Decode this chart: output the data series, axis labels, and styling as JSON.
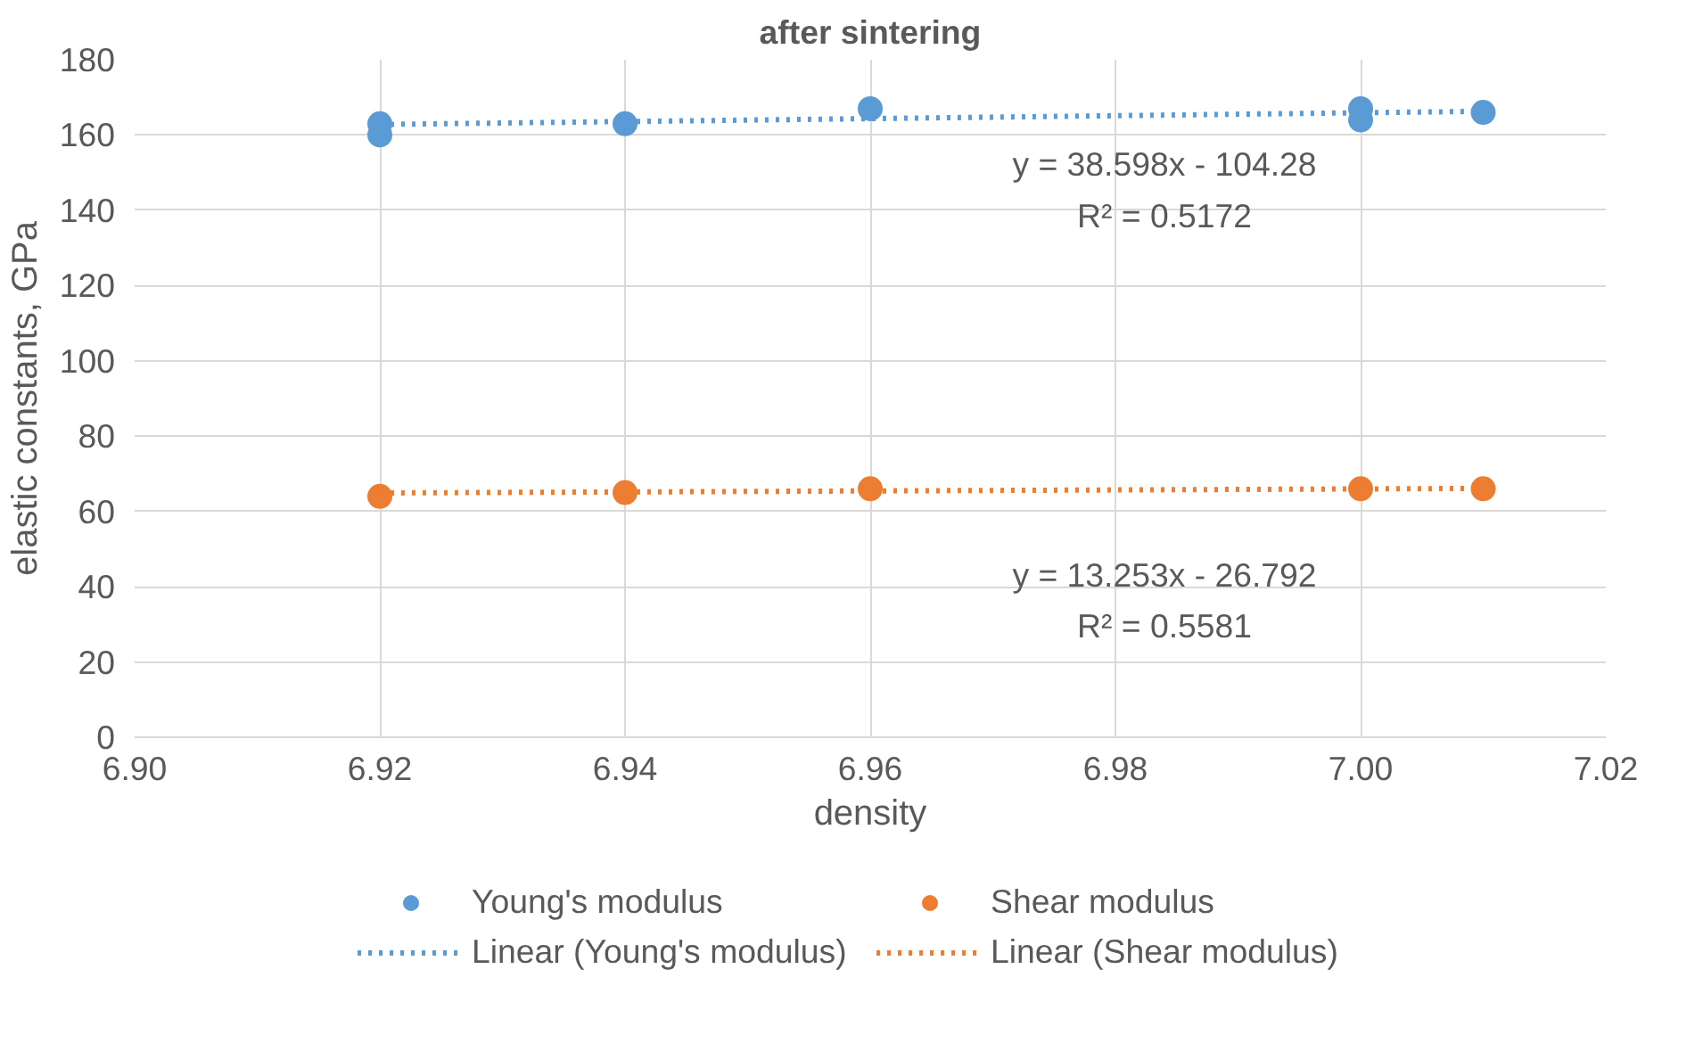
{
  "chart_data": {
    "type": "scatter",
    "title": "after sintering",
    "xlabel": "density",
    "ylabel": "elastic constants, GPa",
    "xlim": [
      6.9,
      7.02
    ],
    "xticks": [
      {
        "value": 6.9,
        "label": "6.90"
      },
      {
        "value": 6.92,
        "label": "6.92"
      },
      {
        "value": 6.94,
        "label": "6.94"
      },
      {
        "value": 6.96,
        "label": "6.96"
      },
      {
        "value": 6.98,
        "label": "6.98"
      },
      {
        "value": 7.0,
        "label": "7.00"
      },
      {
        "value": 7.02,
        "label": "7.02"
      }
    ],
    "ylim": [
      0,
      180
    ],
    "yticks": [
      0,
      20,
      40,
      60,
      80,
      100,
      120,
      140,
      160,
      180
    ],
    "grid": true,
    "legend": "bottom",
    "marker": "circle",
    "series": [
      {
        "name": "Young's modulus",
        "color": "#5b9bd5",
        "x": [
          6.92,
          6.92,
          6.94,
          6.96,
          7.0,
          7.0,
          7.01
        ],
        "values": [
          163,
          160,
          163,
          167,
          167,
          164,
          166
        ]
      },
      {
        "name": "Shear modulus",
        "color": "#ed7d31",
        "x": [
          6.92,
          6.94,
          6.96,
          7.0,
          7.01
        ],
        "values": [
          64,
          65,
          66,
          66,
          66
        ]
      },
      {
        "name": "Linear (Young's modulus)",
        "type": "line",
        "line_style": "dotted",
        "marker": "none",
        "color": "#5b9bd5",
        "x": [
          6.92,
          7.01
        ],
        "values": [
          162.8,
          166.3
        ]
      },
      {
        "name": "Linear (Shear modulus)",
        "type": "line",
        "line_style": "dotted",
        "marker": "none",
        "color": "#ed7d31",
        "x": [
          6.92,
          7.01
        ],
        "values": [
          64.9,
          66.1
        ]
      }
    ],
    "annotations": [
      "y = 38.598x - 104.28",
      "R² = 0.5172",
      "y = 13.253x - 26.792",
      "R² = 0.5581"
    ]
  }
}
